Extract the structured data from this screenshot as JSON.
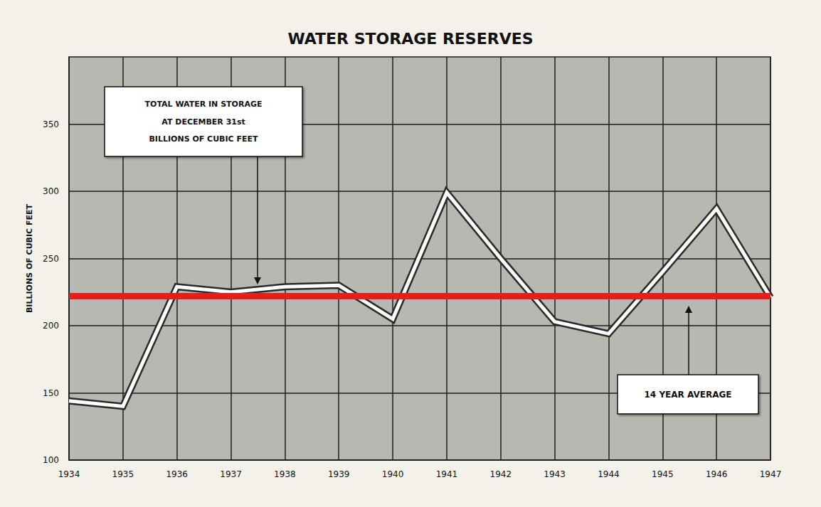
{
  "chart_data": {
    "type": "line",
    "title": "WATER STORAGE RESERVES",
    "y_label": "BILLIONS OF CUBIC FEET",
    "categories": [
      "1934",
      "1935",
      "1936",
      "1937",
      "1938",
      "1939",
      "1940",
      "1941",
      "1942",
      "1943",
      "1944",
      "1945",
      "1946",
      "1947"
    ],
    "values": [
      144,
      140,
      229,
      225,
      229,
      230,
      205,
      299,
      250,
      203,
      194,
      240,
      287,
      221
    ],
    "color": "#ffffff",
    "ylim": [
      100,
      400
    ],
    "yticks": [
      100,
      150,
      200,
      250,
      300,
      350
    ],
    "grid": true,
    "average": {
      "value": 222,
      "label": "14 YEAR AVERAGE",
      "color": "#e3201b"
    },
    "annotations": [
      {
        "text": [
          "TOTAL WATER IN STORAGE",
          "AT DECEMBER 31st",
          "BILLIONS OF CUBIC FEET"
        ]
      }
    ]
  }
}
